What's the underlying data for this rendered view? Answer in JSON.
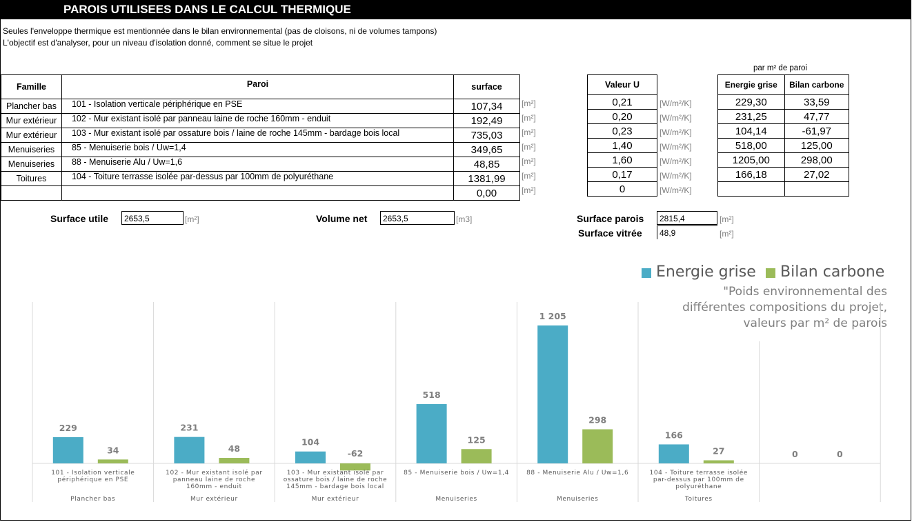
{
  "header": {
    "title": "PAROIS UTILISEES DANS LE CALCUL THERMIQUE"
  },
  "intro": {
    "line1": "Seules l'enveloppe thermique est mentionnée dans le bilan environnemental (pas de cloisons, ni de volumes tampons)",
    "line2": "L'objectif est d'analyser, pour un niveau d'isolation donné, comment se situe le projet"
  },
  "table": {
    "headers": {
      "famille": "Famille",
      "paroi": "Paroi",
      "surface": "surface",
      "valeur_u": "Valeur U",
      "energie": "Energie grise",
      "bilan": "Bilan carbone"
    },
    "per_m2_label": "par m² de paroi",
    "unit_surface": "[m²]",
    "unit_u": "[W/m²/K]",
    "rows": [
      {
        "famille": "Plancher bas",
        "paroi": "101 - Isolation verticale périphérique en PSE",
        "surface": "107,34",
        "u": "0,21",
        "energie": "229,30",
        "bilan": "33,59"
      },
      {
        "famille": "Mur extérieur",
        "paroi": "102 - Mur existant isolé par panneau laine de roche 160mm - enduit",
        "surface": "192,49",
        "u": "0,20",
        "energie": "231,25",
        "bilan": "47,77"
      },
      {
        "famille": "Mur extérieur",
        "paroi": "103 - Mur existant isolé par ossature bois / laine de roche 145mm - bardage bois local",
        "surface": "735,03",
        "u": "0,23",
        "energie": "104,14",
        "bilan": "-61,97"
      },
      {
        "famille": "Menuiseries",
        "paroi": "85 - Menuiserie bois / Uw=1,4",
        "surface": "349,65",
        "u": "1,40",
        "energie": "518,00",
        "bilan": "125,00"
      },
      {
        "famille": "Menuiseries",
        "paroi": "88 - Menuiserie Alu / Uw=1,6",
        "surface": "48,85",
        "u": "1,60",
        "energie": "1205,00",
        "bilan": "298,00"
      },
      {
        "famille": "Toitures",
        "paroi": "104 - Toiture terrasse isolée par-dessus par 100mm de polyuréthane",
        "surface": "1381,99",
        "u": "0,17",
        "energie": "166,18",
        "bilan": "27,02"
      },
      {
        "famille": "",
        "paroi": "",
        "surface": "0,00",
        "u": "0",
        "energie": "",
        "bilan": ""
      }
    ]
  },
  "summary": {
    "surface_utile_label": "Surface utile",
    "surface_utile_value": "2653,5",
    "surface_utile_unit": "[m²]",
    "volume_net_label": "Volume net",
    "volume_net_value": "2653,5",
    "volume_net_unit": "[m3]",
    "surface_parois_label": "Surface parois",
    "surface_parois_value": "2815,4",
    "surface_parois_unit": "[m²]",
    "surface_vitree_label": "Surface vitrée",
    "surface_vitree_value": "48,9",
    "surface_vitree_unit": "[m²]"
  },
  "chart_data": {
    "type": "bar",
    "legend_position": "top-right",
    "note_lines": [
      "\"Poids environnemental des",
      "différentes compositions du projet,",
      "valeurs par m² de parois"
    ],
    "categories": [
      {
        "lines": [
          "101 - Isolation verticale",
          "périphérique en PSE"
        ],
        "group": "Plancher bas"
      },
      {
        "lines": [
          "102 - Mur existant isolé par",
          "panneau laine de roche",
          "160mm - enduit"
        ],
        "group": "Mur extérieur"
      },
      {
        "lines": [
          "103 - Mur existant isolé par",
          "ossature bois / laine de roche",
          "145mm - bardage bois local"
        ],
        "group": "Mur extérieur"
      },
      {
        "lines": [
          "85 - Menuiserie bois / Uw=1,4"
        ],
        "group": "Menuiseries"
      },
      {
        "lines": [
          "88 - Menuiserie Alu / Uw=1,6"
        ],
        "group": "Menuiseries"
      },
      {
        "lines": [
          "104 - Toiture terrasse isolée",
          "par-dessus par 100mm de",
          "polyuréthane"
        ],
        "group": "Toitures"
      },
      {
        "lines": [],
        "group": ""
      }
    ],
    "series": [
      {
        "name": "Energie grise",
        "color": "#4bacc6",
        "values": [
          229,
          231,
          104,
          518,
          1205,
          166,
          0
        ],
        "labels": [
          "229",
          "231",
          "104",
          "518",
          "1 205",
          "166",
          "0"
        ]
      },
      {
        "name": "Bilan carbone",
        "color": "#9bbb59",
        "values": [
          34,
          48,
          -62,
          125,
          298,
          27,
          0
        ],
        "labels": [
          "34",
          "48",
          "-62",
          "125",
          "298",
          "27",
          "0"
        ]
      }
    ]
  }
}
